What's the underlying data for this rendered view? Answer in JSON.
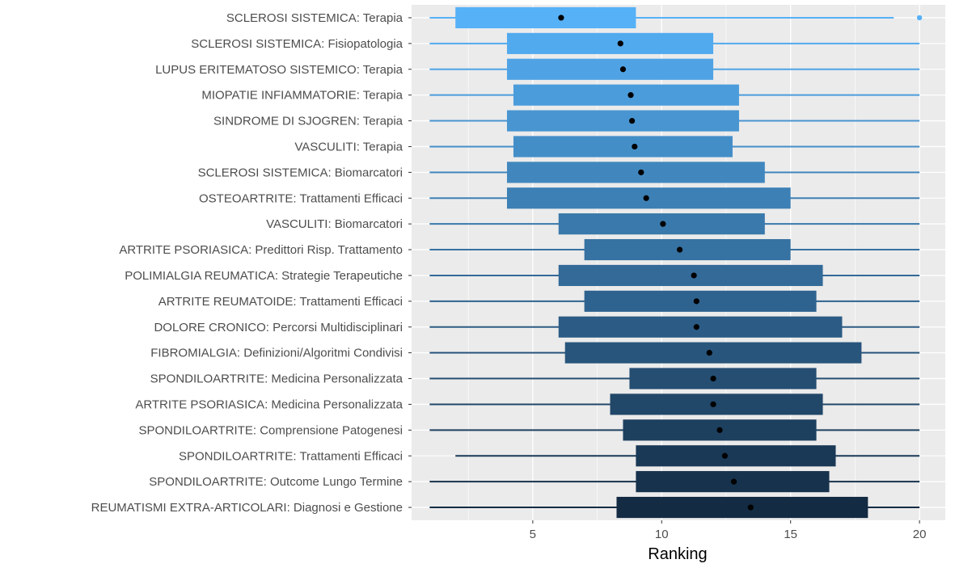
{
  "chart_data": {
    "type": "boxplot",
    "orientation": "horizontal",
    "xlabel": "Ranking",
    "ylabel": "",
    "xlim": [
      0.3,
      21.0
    ],
    "xticks": [
      5,
      10,
      15,
      20
    ],
    "grid": true,
    "legend": "none",
    "colors": {
      "low": "#132B43",
      "high": "#56B1F7",
      "panel": "#EBEBEB",
      "grid": "#FFFFFF",
      "mean_point": "#000000"
    },
    "categories": [
      "SCLEROSI SISTEMICA: Terapia",
      "SCLEROSI SISTEMICA: Fisiopatologia",
      "LUPUS ERITEMATOSO SISTEMICO: Terapia",
      "MIOPATIE INFIAMMATORIE: Terapia",
      "SINDROME DI SJOGREN: Terapia",
      "VASCULITI: Terapia",
      "SCLEROSI SISTEMICA: Biomarcatori",
      "OSTEOARTRITE: Trattamenti Efficaci",
      "VASCULITI:  Biomarcatori",
      "ARTRITE PSORIASICA: Predittori Risp. Trattamento",
      "POLIMIALGIA REUMATICA:  Strategie Terapeutiche",
      "ARTRITE REUMATOIDE: Trattamenti Efficaci",
      "DOLORE CRONICO: Percorsi Multidisciplinari",
      "FIBROMIALGIA: Definizioni/Algoritmi Condivisi",
      "SPONDILOARTRITE: Medicina Personalizzata",
      "ARTRITE PSORIASICA: Medicina Personalizzata",
      "SPONDILOARTRITE: Comprensione Patogenesi",
      "SPONDILOARTRITE: Trattamenti Efficaci",
      "SPONDILOARTRITE: Outcome Lungo Termine",
      "REUMATISMI EXTRA-ARTICOLARI: Diagnosi e Gestione"
    ],
    "series": [
      {
        "whisker_low": 1,
        "q1": 2,
        "q3": 9,
        "whisker_high": 19,
        "mean": 6.1,
        "outliers": [
          20
        ]
      },
      {
        "whisker_low": 1,
        "q1": 4,
        "q3": 12,
        "whisker_high": 20,
        "mean": 8.4,
        "outliers": []
      },
      {
        "whisker_low": 1,
        "q1": 4,
        "q3": 12,
        "whisker_high": 20,
        "mean": 8.5,
        "outliers": []
      },
      {
        "whisker_low": 1,
        "q1": 4.25,
        "q3": 13,
        "whisker_high": 20,
        "mean": 8.8,
        "outliers": []
      },
      {
        "whisker_low": 1,
        "q1": 4,
        "q3": 13,
        "whisker_high": 20,
        "mean": 8.85,
        "outliers": []
      },
      {
        "whisker_low": 1,
        "q1": 4.25,
        "q3": 12.75,
        "whisker_high": 20,
        "mean": 8.95,
        "outliers": []
      },
      {
        "whisker_low": 1,
        "q1": 4,
        "q3": 14,
        "whisker_high": 20,
        "mean": 9.2,
        "outliers": []
      },
      {
        "whisker_low": 1,
        "q1": 4,
        "q3": 15,
        "whisker_high": 20,
        "mean": 9.4,
        "outliers": []
      },
      {
        "whisker_low": 1,
        "q1": 6,
        "q3": 14,
        "whisker_high": 20,
        "mean": 10.05,
        "outliers": []
      },
      {
        "whisker_low": 1,
        "q1": 7,
        "q3": 15,
        "whisker_high": 20,
        "mean": 10.7,
        "outliers": []
      },
      {
        "whisker_low": 1,
        "q1": 6,
        "q3": 16.25,
        "whisker_high": 20,
        "mean": 11.25,
        "outliers": []
      },
      {
        "whisker_low": 1,
        "q1": 7,
        "q3": 16,
        "whisker_high": 20,
        "mean": 11.35,
        "outliers": []
      },
      {
        "whisker_low": 1,
        "q1": 6,
        "q3": 17,
        "whisker_high": 20,
        "mean": 11.35,
        "outliers": []
      },
      {
        "whisker_low": 1,
        "q1": 6.25,
        "q3": 17.75,
        "whisker_high": 20,
        "mean": 11.85,
        "outliers": []
      },
      {
        "whisker_low": 1,
        "q1": 8.75,
        "q3": 16,
        "whisker_high": 20,
        "mean": 12.0,
        "outliers": []
      },
      {
        "whisker_low": 1,
        "q1": 8,
        "q3": 16.25,
        "whisker_high": 20,
        "mean": 12.0,
        "outliers": []
      },
      {
        "whisker_low": 1,
        "q1": 8.5,
        "q3": 16,
        "whisker_high": 20,
        "mean": 12.25,
        "outliers": []
      },
      {
        "whisker_low": 2,
        "q1": 9,
        "q3": 16.75,
        "whisker_high": 20,
        "mean": 12.45,
        "outliers": []
      },
      {
        "whisker_low": 1,
        "q1": 9,
        "q3": 16.5,
        "whisker_high": 20,
        "mean": 12.8,
        "outliers": []
      },
      {
        "whisker_low": 1,
        "q1": 8.25,
        "q3": 18,
        "whisker_high": 20,
        "mean": 13.45,
        "outliers": []
      }
    ]
  }
}
